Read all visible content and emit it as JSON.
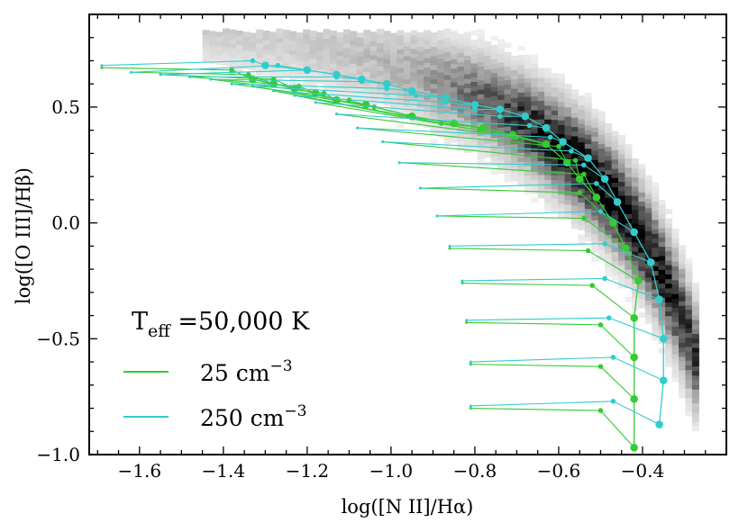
{
  "chart_data": {
    "type": "scatter",
    "xlabel": "log([N II]/Hα)",
    "ylabel": "log([O III]/Hβ)",
    "xlim": [
      -1.72,
      -0.2
    ],
    "ylim": [
      -1.0,
      0.9
    ],
    "xticks": [
      -1.6,
      -1.4,
      -1.2,
      -1.0,
      -0.8,
      -0.6,
      -0.4
    ],
    "xtick_labels": [
      "−1.6",
      "−1.4",
      "−1.2",
      "−1.0",
      "−0.8",
      "−0.6",
      "−0.4"
    ],
    "yticks": [
      -1.0,
      -0.5,
      0.0,
      0.5
    ],
    "ytick_labels": [
      "−1.0",
      "−0.5",
      "0.0",
      "0.5"
    ],
    "grid": false,
    "background_histogram": "grayscale 2D density of galaxies along the star-forming sequence",
    "legend": {
      "placement": "lower-left",
      "title_main": "T",
      "title_sub": "eff",
      "title_rest": " =50,000 K",
      "entries": [
        {
          "label_main": "25 cm",
          "label_sup": "−3",
          "color": "#33cc33"
        },
        {
          "label_main": "250 cm",
          "label_sup": "−3",
          "color": "#33cccc"
        }
      ]
    },
    "series": [
      {
        "name": "25 cm−3",
        "color": "#33cc33",
        "big_points": [
          [
            -0.42,
            -0.97
          ],
          [
            -0.42,
            -0.76
          ],
          [
            -0.42,
            -0.58
          ],
          [
            -0.42,
            -0.41
          ],
          [
            -0.41,
            -0.25
          ],
          [
            -0.44,
            -0.11
          ],
          [
            -0.47,
            0.0
          ],
          [
            -0.51,
            0.11
          ],
          [
            -0.55,
            0.19
          ],
          [
            -0.58,
            0.26
          ],
          [
            -0.63,
            0.34
          ],
          [
            -0.71,
            0.38
          ],
          [
            -0.78,
            0.41
          ],
          [
            -0.85,
            0.43
          ],
          [
            -0.95,
            0.46
          ],
          [
            -1.06,
            0.51
          ],
          [
            -1.13,
            0.53
          ],
          [
            -1.18,
            0.56
          ],
          [
            -1.23,
            0.58
          ],
          [
            -1.28,
            0.6
          ],
          [
            -1.33,
            0.62
          ]
        ],
        "small_points": [
          [
            -0.5,
            -0.81
          ],
          [
            -0.5,
            -0.62
          ],
          [
            -0.5,
            -0.44
          ],
          [
            -0.52,
            -0.27
          ],
          [
            -0.53,
            -0.12
          ],
          [
            -0.54,
            0.02
          ],
          [
            -0.55,
            0.13
          ],
          [
            -0.54,
            0.21
          ],
          [
            -0.56,
            0.27
          ],
          [
            -0.6,
            0.33
          ],
          [
            -0.7,
            0.37
          ],
          [
            -0.79,
            0.4
          ],
          [
            -0.88,
            0.43
          ],
          [
            -0.96,
            0.46
          ],
          [
            -1.04,
            0.5
          ],
          [
            -1.1,
            0.53
          ],
          [
            -1.16,
            0.56
          ],
          [
            -1.22,
            0.59
          ],
          [
            -1.28,
            0.62
          ],
          [
            -1.34,
            0.64
          ],
          [
            -1.38,
            0.66
          ]
        ],
        "line_starts": [
          [
            -0.81,
            -0.8
          ],
          [
            -0.81,
            -0.61
          ],
          [
            -0.82,
            -0.43
          ],
          [
            -0.83,
            -0.26
          ],
          [
            -0.86,
            -0.11
          ],
          [
            -0.89,
            0.03
          ],
          [
            -0.93,
            0.15
          ],
          [
            -0.98,
            0.26
          ],
          [
            -1.02,
            0.35
          ],
          [
            -1.08,
            0.41
          ],
          [
            -1.13,
            0.47
          ],
          [
            -1.18,
            0.52
          ],
          [
            -1.23,
            0.55
          ],
          [
            -1.28,
            0.57
          ],
          [
            -1.33,
            0.59
          ],
          [
            -1.38,
            0.6
          ],
          [
            -1.43,
            0.62
          ],
          [
            -1.48,
            0.63
          ],
          [
            -1.55,
            0.64
          ],
          [
            -1.62,
            0.65
          ],
          [
            -1.69,
            0.67
          ]
        ]
      },
      {
        "name": "250 cm−3",
        "color": "#33cccc",
        "big_points": [
          [
            -0.36,
            -0.87
          ],
          [
            -0.35,
            -0.68
          ],
          [
            -0.35,
            -0.5
          ],
          [
            -0.36,
            -0.33
          ],
          [
            -0.38,
            -0.17
          ],
          [
            -0.42,
            -0.04
          ],
          [
            -0.46,
            0.09
          ],
          [
            -0.49,
            0.19
          ],
          [
            -0.53,
            0.28
          ],
          [
            -0.59,
            0.35
          ],
          [
            -0.63,
            0.41
          ],
          [
            -0.68,
            0.46
          ],
          [
            -0.74,
            0.49
          ],
          [
            -0.8,
            0.51
          ],
          [
            -0.87,
            0.54
          ],
          [
            -0.95,
            0.57
          ],
          [
            -1.01,
            0.6
          ],
          [
            -1.07,
            0.62
          ],
          [
            -1.13,
            0.64
          ],
          [
            -1.2,
            0.66
          ],
          [
            -1.3,
            0.68
          ]
        ],
        "small_points": [
          [
            -0.47,
            -0.77
          ],
          [
            -0.47,
            -0.58
          ],
          [
            -0.48,
            -0.41
          ],
          [
            -0.49,
            -0.24
          ],
          [
            -0.49,
            -0.09
          ],
          [
            -0.5,
            0.05
          ],
          [
            -0.51,
            0.17
          ],
          [
            -0.54,
            0.25
          ],
          [
            -0.57,
            0.31
          ],
          [
            -0.62,
            0.37
          ],
          [
            -0.67,
            0.42
          ],
          [
            -0.74,
            0.46
          ],
          [
            -0.8,
            0.49
          ],
          [
            -0.87,
            0.52
          ],
          [
            -0.94,
            0.55
          ],
          [
            -1.01,
            0.58
          ],
          [
            -1.07,
            0.61
          ],
          [
            -1.13,
            0.63
          ],
          [
            -1.2,
            0.66
          ],
          [
            -1.27,
            0.68
          ],
          [
            -1.33,
            0.7
          ]
        ],
        "line_starts": [
          [
            -0.81,
            -0.79
          ],
          [
            -0.81,
            -0.6
          ],
          [
            -0.82,
            -0.42
          ],
          [
            -0.83,
            -0.25
          ],
          [
            -0.86,
            -0.1
          ],
          [
            -0.89,
            0.03
          ],
          [
            -0.93,
            0.15
          ],
          [
            -0.98,
            0.26
          ],
          [
            -1.02,
            0.35
          ],
          [
            -1.08,
            0.41
          ],
          [
            -1.13,
            0.47
          ],
          [
            -1.18,
            0.52
          ],
          [
            -1.23,
            0.55
          ],
          [
            -1.28,
            0.57
          ],
          [
            -1.33,
            0.59
          ],
          [
            -1.38,
            0.6
          ],
          [
            -1.43,
            0.62
          ],
          [
            -1.48,
            0.63
          ],
          [
            -1.55,
            0.64
          ],
          [
            -1.62,
            0.65
          ],
          [
            -1.69,
            0.68
          ]
        ]
      }
    ]
  }
}
